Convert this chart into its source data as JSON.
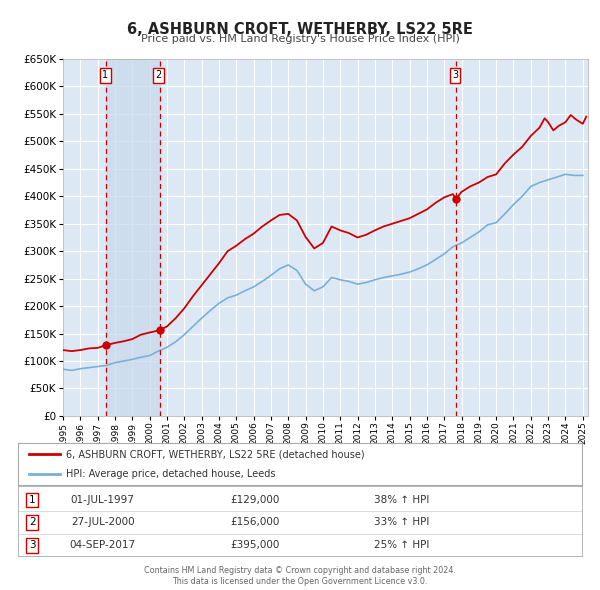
{
  "title": "6, ASHBURN CROFT, WETHERBY, LS22 5RE",
  "subtitle": "Price paid vs. HM Land Registry's House Price Index (HPI)",
  "ylim": [
    0,
    650000
  ],
  "yticks": [
    0,
    50000,
    100000,
    150000,
    200000,
    250000,
    300000,
    350000,
    400000,
    450000,
    500000,
    550000,
    600000,
    650000
  ],
  "background_color": "#ffffff",
  "plot_bg_color": "#dce9f5",
  "grid_color": "#ffffff",
  "sale_color": "#cc0000",
  "hpi_color": "#7ab0d4",
  "vline_color": "#cc0000",
  "shade_color": "#c8d8ec",
  "sale_label": "6, ASHBURN CROFT, WETHERBY, LS22 5RE (detached house)",
  "hpi_label": "HPI: Average price, detached house, Leeds",
  "transactions": [
    {
      "num": 1,
      "date": "01-JUL-1997",
      "price": 129000,
      "pct": "38%",
      "x_year": 1997.5
    },
    {
      "num": 2,
      "date": "27-JUL-2000",
      "price": 156000,
      "pct": "33%",
      "x_year": 2000.57
    },
    {
      "num": 3,
      "date": "04-SEP-2017",
      "price": 395000,
      "pct": "25%",
      "x_year": 2017.68
    }
  ],
  "footnote1": "Contains HM Land Registry data © Crown copyright and database right 2024.",
  "footnote2": "This data is licensed under the Open Government Licence v3.0.",
  "xmin": 1995.0,
  "xmax": 2025.3
}
